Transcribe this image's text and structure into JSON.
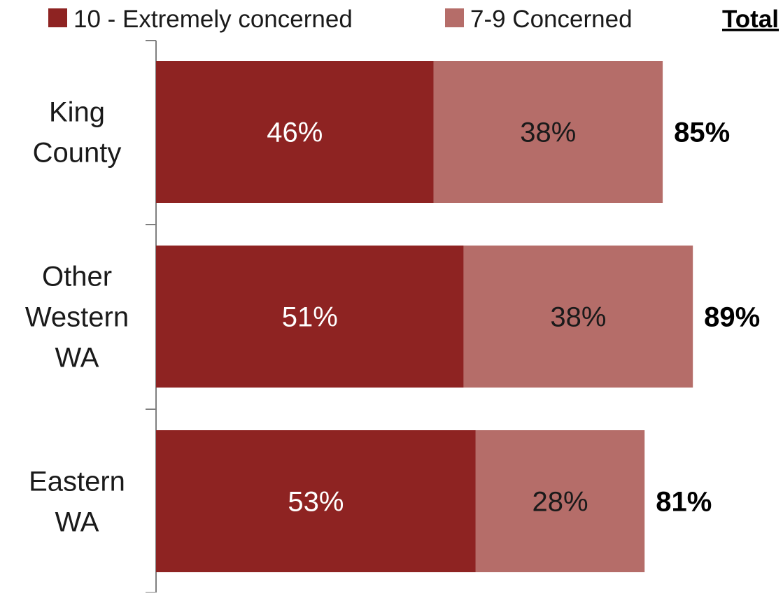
{
  "chart_data": {
    "type": "bar",
    "orientation": "horizontal",
    "stacked": true,
    "categories": [
      [
        "King",
        "County"
      ],
      [
        "Other",
        "Western",
        "WA"
      ],
      [
        "Eastern",
        "WA"
      ]
    ],
    "series": [
      {
        "name": "10 - Extremely concerned",
        "color": "#8E2322",
        "values": [
          46,
          51,
          53
        ],
        "labels": [
          "46%",
          "51%",
          "53%"
        ],
        "label_color": "#ffffff"
      },
      {
        "name": "7-9 Concerned",
        "color": "#B56D69",
        "values": [
          38,
          38,
          28
        ],
        "labels": [
          "38%",
          "38%",
          "28%"
        ],
        "label_color": "#1a1a1a"
      }
    ],
    "totals": {
      "header": "Total",
      "values": [
        85,
        89,
        81
      ],
      "labels": [
        "85%",
        "89%",
        "81%"
      ]
    },
    "xlim": [
      0,
      100
    ],
    "grid": false,
    "legend": "top"
  }
}
